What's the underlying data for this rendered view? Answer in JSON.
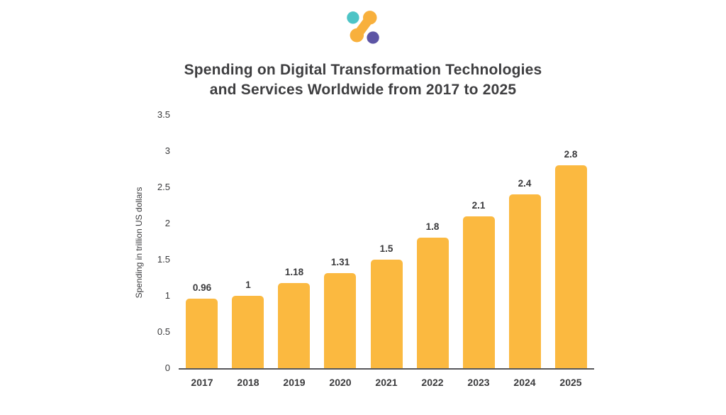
{
  "title": {
    "line1": "Spending on Digital Transformation Technologies",
    "line2": "and Services Worldwide from 2017 to 2025"
  },
  "logo": {
    "name": "brand-logo",
    "teal": "#4DC4C6",
    "orange": "#F8B03C",
    "purple": "#5D55A5"
  },
  "chart_data": {
    "type": "bar",
    "title": "Spending on Digital Transformation Technologies and Services Worldwide from 2017 to 2025",
    "categories": [
      "2017",
      "2018",
      "2019",
      "2020",
      "2021",
      "2022",
      "2023",
      "2024",
      "2025"
    ],
    "values": [
      0.96,
      1,
      1.18,
      1.31,
      1.5,
      1.8,
      2.1,
      2.4,
      2.8
    ],
    "value_labels": [
      "0.96",
      "1",
      "1.18",
      "1.31",
      "1.5",
      "1.8",
      "2.1",
      "2.4",
      "2.8"
    ],
    "xlabel": "",
    "ylabel": "Spending in trillion US dollars",
    "ylim": [
      0,
      3.5
    ],
    "yticks": [
      0,
      0.5,
      1,
      1.5,
      2,
      2.5,
      3,
      3.5
    ],
    "ytick_labels": [
      "0",
      "0.5",
      "1",
      "1.5",
      "2",
      "2.5",
      "3",
      "3.5"
    ],
    "bar_color": "#FBB940",
    "axis_color": "#57575a",
    "grid": false,
    "legend": false
  }
}
